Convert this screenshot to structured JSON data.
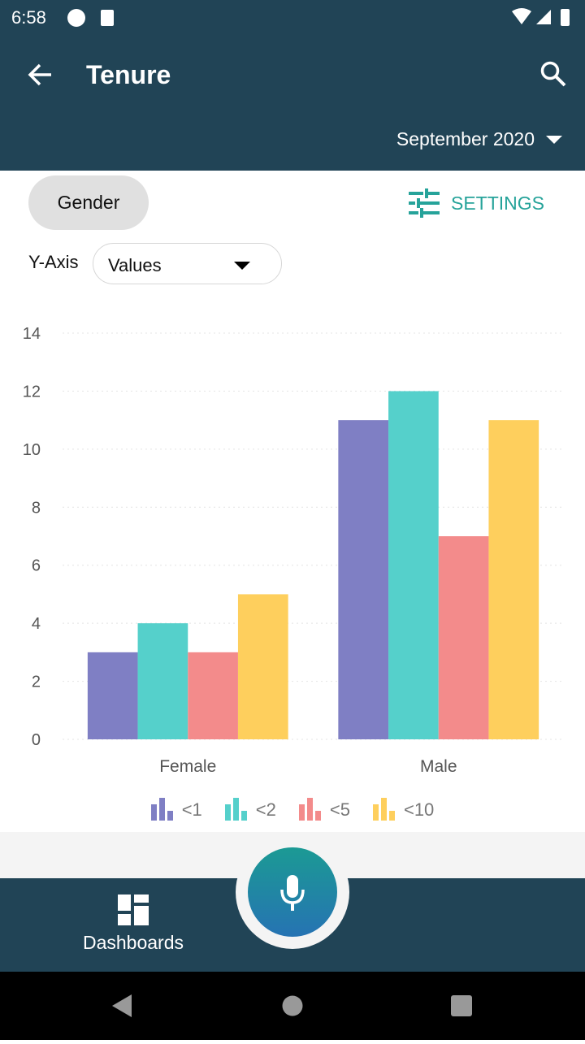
{
  "status_bar": {
    "time": "6:58"
  },
  "header": {
    "title": "Tenure",
    "period": "September 2020"
  },
  "controls": {
    "group_chip": "Gender",
    "settings_label": "SETTINGS",
    "y_axis_label": "Y-Axis",
    "y_axis_value": "Values"
  },
  "chart_data": {
    "type": "bar",
    "categories": [
      "Female",
      "Male"
    ],
    "series": [
      {
        "name": "<1",
        "values": [
          3,
          11
        ],
        "color": "#7f7fc4"
      },
      {
        "name": "<2",
        "values": [
          4,
          12
        ],
        "color": "#55d0cb"
      },
      {
        "name": "<5",
        "values": [
          3,
          7
        ],
        "color": "#f38b8b"
      },
      {
        "name": "<10",
        "values": [
          5,
          11
        ],
        "color": "#fecf5d"
      }
    ],
    "ylim": [
      0,
      14
    ],
    "yticks": [
      0,
      2,
      4,
      6,
      8,
      10,
      12,
      14
    ],
    "grid": true,
    "legend": "bottom"
  },
  "bottom_nav": {
    "dashboards_label": "Dashboards"
  }
}
